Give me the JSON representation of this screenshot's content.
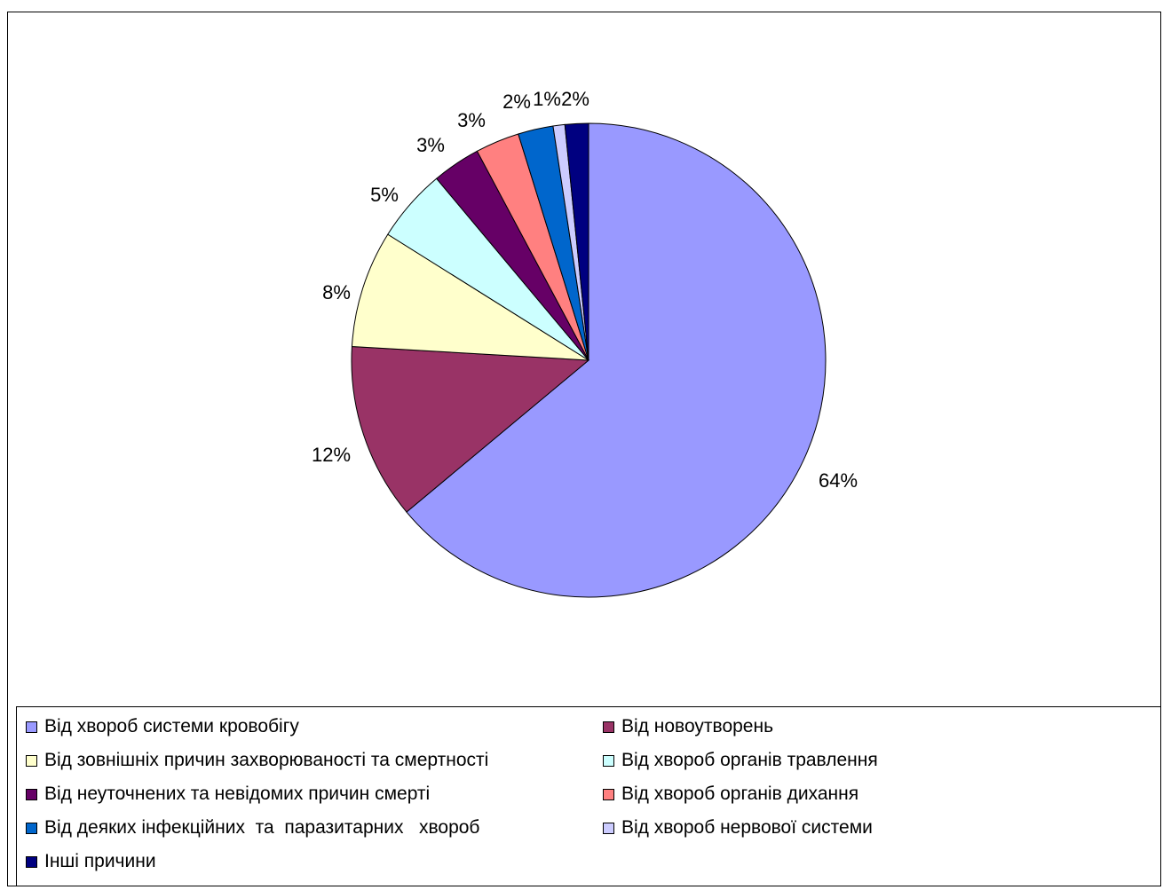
{
  "chart_data": {
    "type": "pie",
    "slices": [
      {
        "name": "Від хвороб системи кровобігу",
        "value": 64,
        "label": "64%",
        "color": "#9999FF"
      },
      {
        "name": "Від новоутворень",
        "value": 12,
        "label": "12%",
        "color": "#993366"
      },
      {
        "name": "Від зовнішніх причин захворюваності та смертності",
        "value": 8,
        "label": "8%",
        "color": "#FFFFCC"
      },
      {
        "name": "Від хвороб органів травлення",
        "value": 5,
        "label": "5%",
        "color": "#CCFFFF"
      },
      {
        "name": "Від неуточнених та невідомих причин смерті",
        "value": 3.3,
        "label": "3%",
        "color": "#660066"
      },
      {
        "name": "Від хвороб органів дихання",
        "value": 3,
        "label": "3%",
        "color": "#FF8080"
      },
      {
        "name": "Від деяких інфекційних  та  паразитарних   хвороб",
        "value": 2.4,
        "label": "2%",
        "color": "#0066CC"
      },
      {
        "name": "Від хвороб нервової системи",
        "value": 0.8,
        "label": "1%",
        "color": "#CCCCFF"
      },
      {
        "name": "Інші причини",
        "value": 1.6,
        "label": "2%",
        "color": "#000080"
      }
    ],
    "legend_position": "bottom"
  }
}
